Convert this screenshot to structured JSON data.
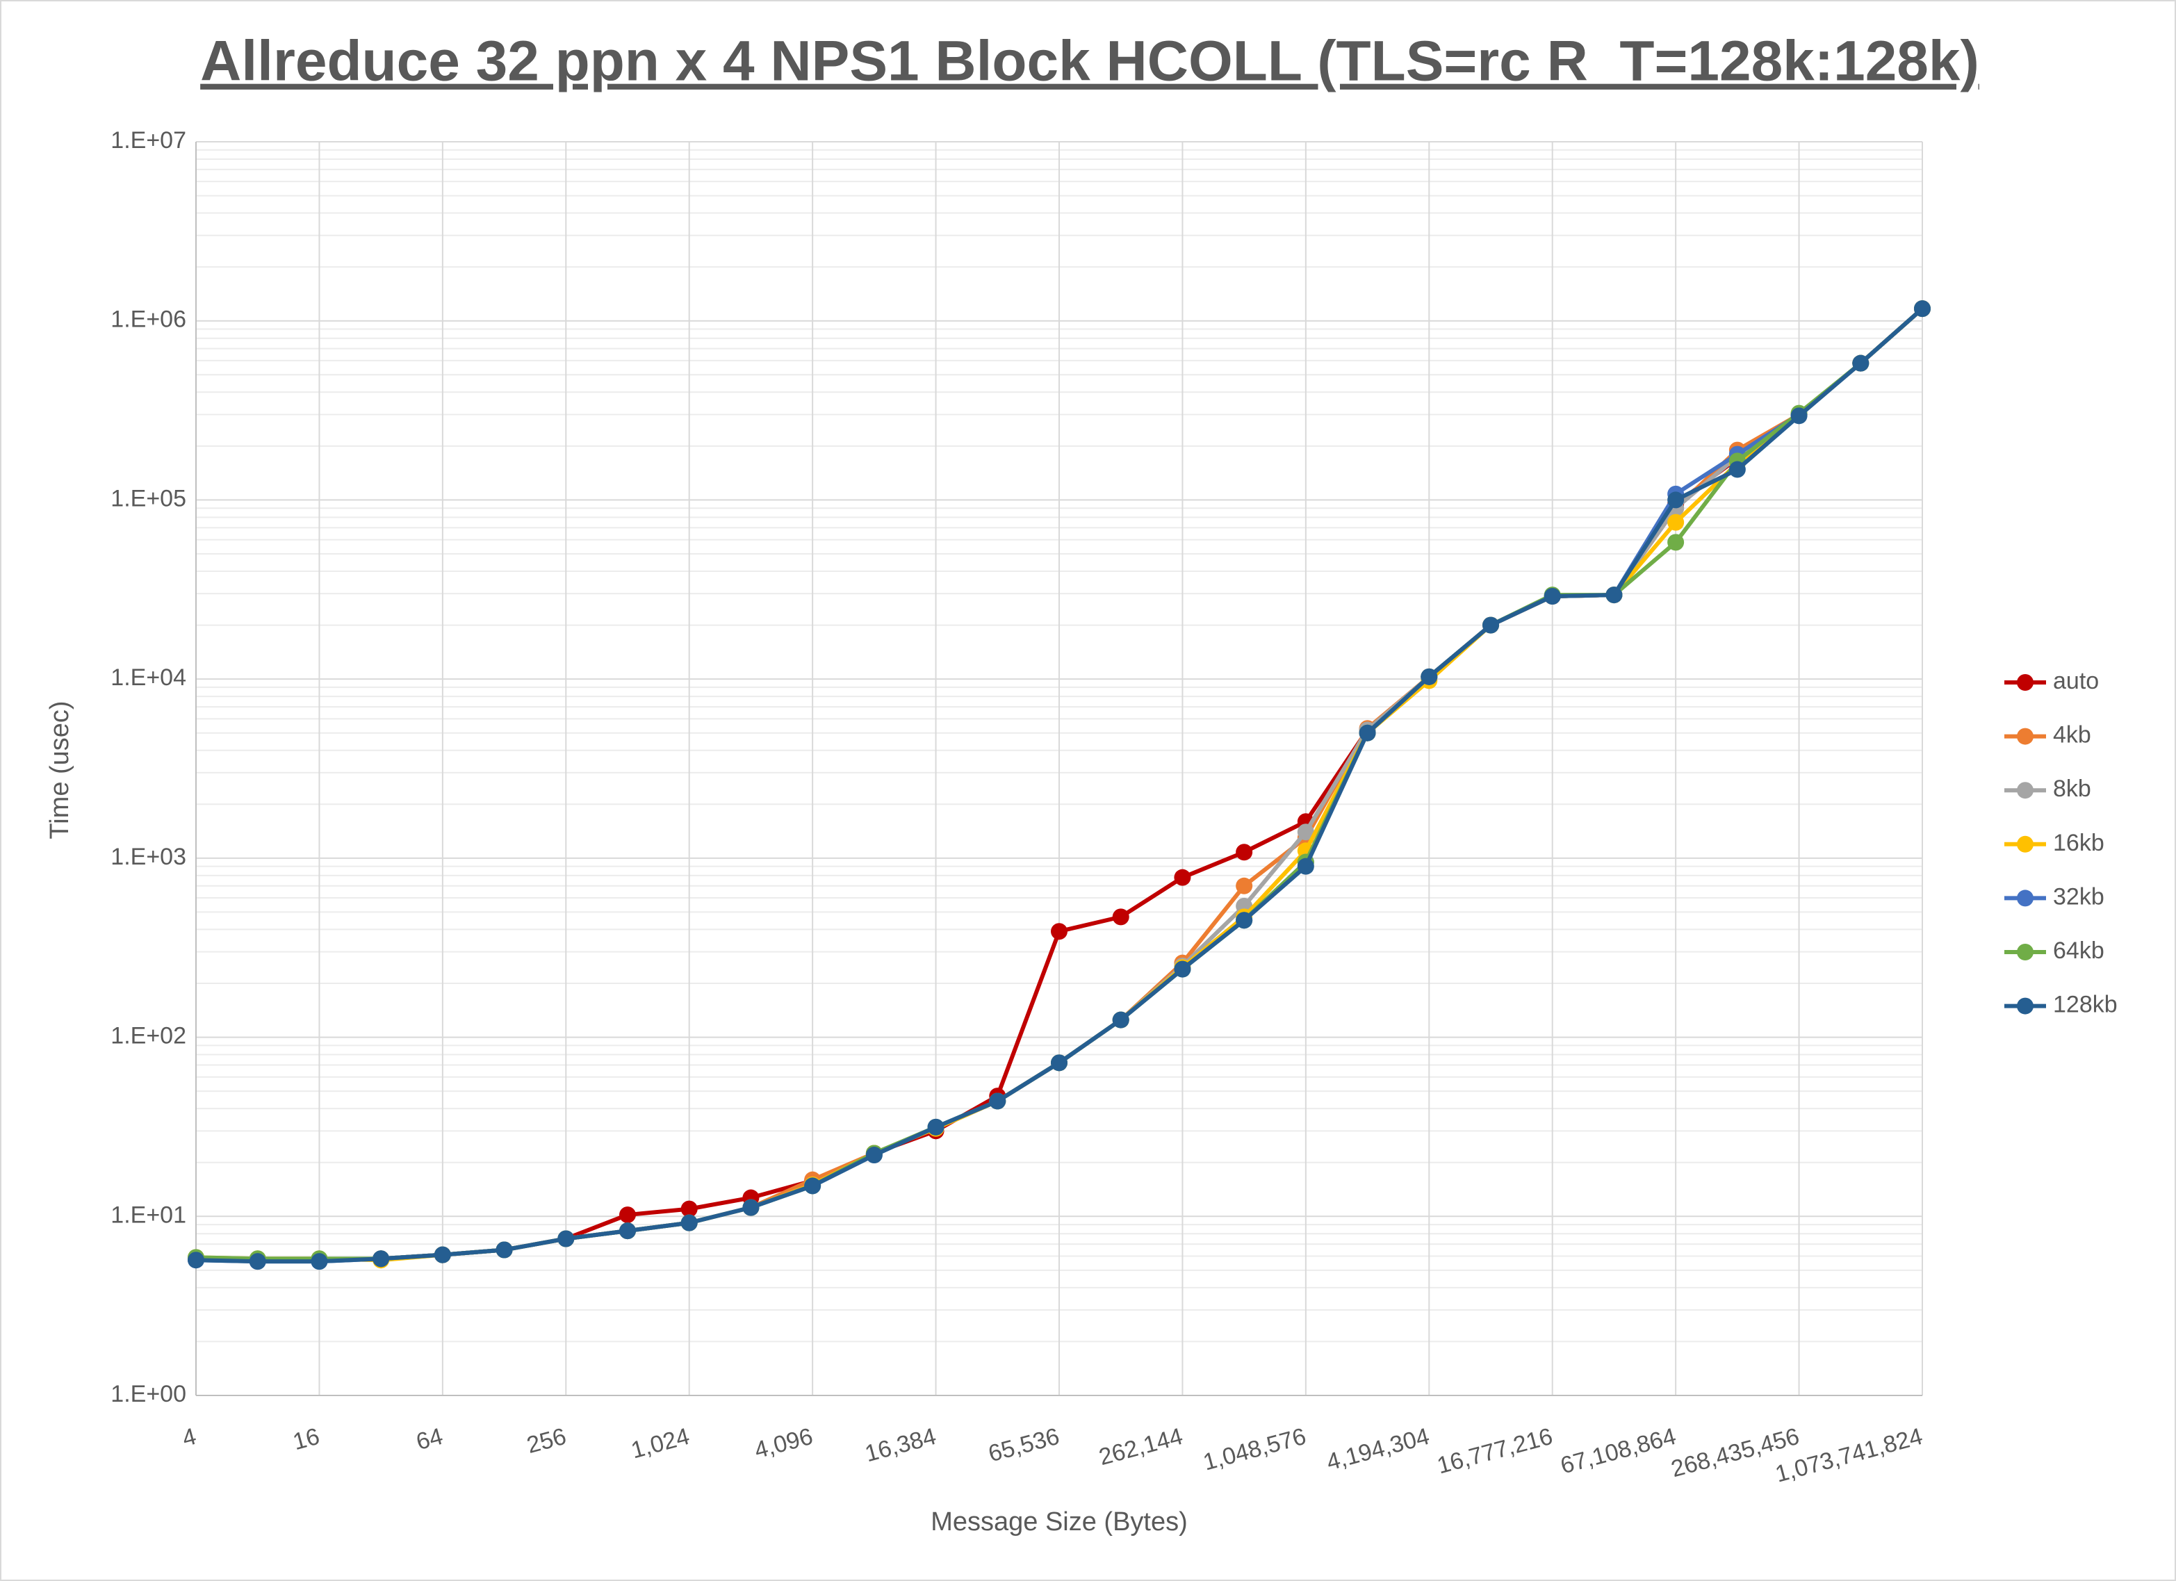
{
  "chart_data": {
    "type": "line",
    "title": "Allreduce 32 ppn x 4 NPS1 Block HCOLL (TLS=rc R_T=128k:128k)",
    "x_label": "Message Size (Bytes)",
    "y_label": "Time (usec)",
    "x": [
      4,
      8,
      16,
      32,
      64,
      128,
      256,
      512,
      1024,
      2048,
      4096,
      8192,
      16384,
      32768,
      65536,
      131072,
      262144,
      524288,
      1048576,
      2097152,
      4194304,
      8388608,
      16777216,
      33554432,
      67108864,
      134217728,
      268435456,
      536870912,
      1073741824
    ],
    "series": [
      {
        "name": "auto",
        "color": "#c00000",
        "values": [
          5.8,
          5.7,
          5.7,
          5.8,
          6.1,
          6.5,
          7.5,
          10.2,
          11,
          12.7,
          15.8,
          22.5,
          30,
          47,
          390,
          470,
          780,
          1080,
          1600,
          5200,
          10300,
          20000,
          29000,
          29500,
          95000,
          170000,
          300000,
          580000,
          1170000
        ]
      },
      {
        "name": "4kb",
        "color": "#ed7d31",
        "values": [
          5.8,
          5.7,
          5.7,
          5.8,
          6.1,
          6.5,
          7.5,
          8.3,
          9.2,
          11.2,
          16,
          22.5,
          31,
          44,
          72,
          125,
          260,
          700,
          1300,
          5300,
          10300,
          20000,
          29000,
          29500,
          90000,
          190000,
          300000,
          580000,
          1170000
        ]
      },
      {
        "name": "8kb",
        "color": "#a5a5a5",
        "values": [
          5.8,
          5.7,
          5.7,
          5.8,
          6.1,
          6.5,
          7.5,
          8.3,
          9.2,
          11.2,
          15,
          22.5,
          31,
          44,
          72,
          125,
          250,
          540,
          1400,
          5200,
          10300,
          20000,
          29000,
          29500,
          90000,
          175000,
          300000,
          580000,
          1170000
        ]
      },
      {
        "name": "16kb",
        "color": "#ffc000",
        "values": [
          5.9,
          5.8,
          5.8,
          5.7,
          6.1,
          6.5,
          7.5,
          8.3,
          9.2,
          11.2,
          15,
          22.5,
          31,
          44,
          72,
          125,
          245,
          470,
          1100,
          5000,
          9800,
          20000,
          29000,
          29500,
          75000,
          160000,
          300000,
          580000,
          1170000
        ]
      },
      {
        "name": "32kb",
        "color": "#4472c4",
        "values": [
          5.7,
          5.6,
          5.6,
          5.8,
          6.1,
          6.5,
          7.5,
          8.3,
          9.2,
          11.2,
          14.8,
          22,
          31.5,
          44,
          72,
          125,
          240,
          450,
          950,
          5000,
          10300,
          20000,
          29000,
          29500,
          108000,
          180000,
          300000,
          580000,
          1170000
        ]
      },
      {
        "name": "64kb",
        "color": "#70ad47",
        "values": [
          5.9,
          5.8,
          5.8,
          5.8,
          6.1,
          6.5,
          7.5,
          8.3,
          9.2,
          11.2,
          14.8,
          22.5,
          31.5,
          44,
          72,
          125,
          240,
          450,
          950,
          5000,
          10300,
          20000,
          29500,
          29500,
          58000,
          165000,
          305000,
          580000,
          1170000
        ]
      },
      {
        "name": "128kb",
        "color": "#255e91",
        "values": [
          5.7,
          5.6,
          5.6,
          5.8,
          6.1,
          6.5,
          7.5,
          8.3,
          9.2,
          11.2,
          14.8,
          22,
          31.5,
          44,
          72,
          125,
          240,
          450,
          900,
          5000,
          10300,
          20000,
          29000,
          29500,
          100000,
          148000,
          295000,
          580000,
          1170000
        ]
      }
    ],
    "log_x": true,
    "log_y": true,
    "grid": true,
    "legend": "right",
    "xlim": [
      4,
      1073741824
    ],
    "xticks": [
      4,
      16,
      64,
      256,
      {
        "value": 1024,
        "label": "1,024"
      },
      {
        "value": 4096,
        "label": "4,096"
      },
      {
        "value": 16384,
        "label": "16,384"
      },
      {
        "value": 65536,
        "label": "65,536"
      },
      {
        "value": 262144,
        "label": "262,144"
      },
      {
        "value": 1048576,
        "label": "1,048,576"
      },
      {
        "value": 4194304,
        "label": "4,194,304"
      },
      {
        "value": 16777216,
        "label": "16,777,216"
      },
      {
        "value": 67108864,
        "label": "67,108,864"
      },
      {
        "value": 268435456,
        "label": "268,435,456"
      },
      {
        "value": 1073741824,
        "label": "1,073,741,824"
      }
    ],
    "ylim": [
      1,
      10000000
    ],
    "yticks": [
      {
        "value": 1,
        "label": "1.E+00"
      },
      {
        "value": 10,
        "label": "1.E+01"
      },
      {
        "value": 100,
        "label": "1.E+02"
      },
      {
        "value": 1000,
        "label": "1.E+03"
      },
      {
        "value": 10000,
        "label": "1.E+04"
      },
      {
        "value": 100000,
        "label": "1.E+05"
      },
      {
        "value": 1000000,
        "label": "1.E+06"
      },
      {
        "value": 10000000,
        "label": "1.E+07"
      }
    ]
  }
}
